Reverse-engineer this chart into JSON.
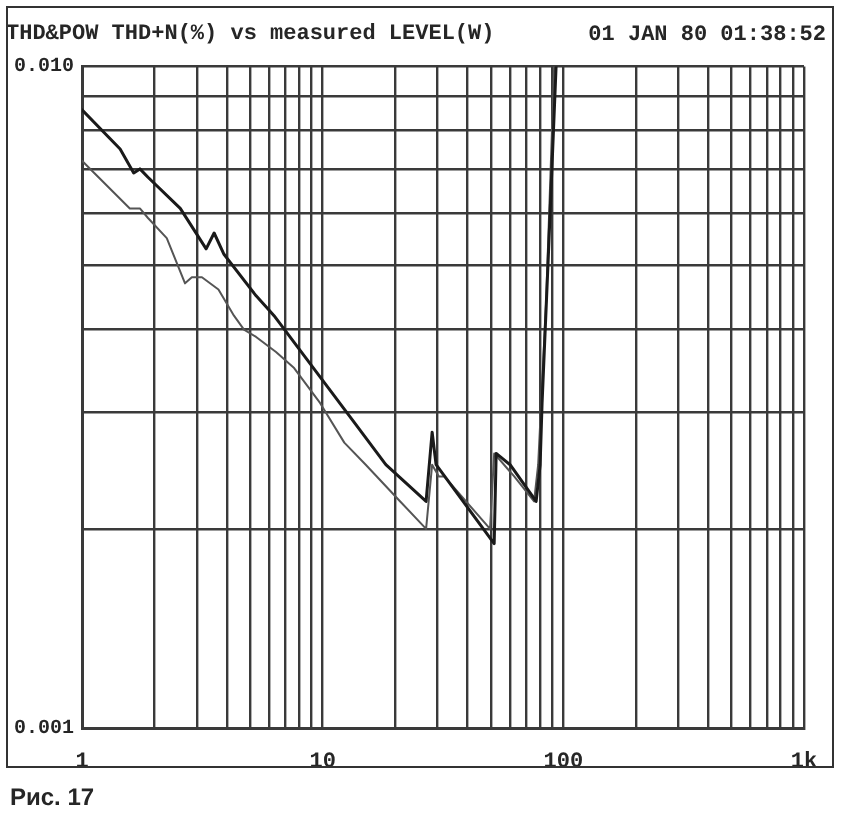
{
  "chart_data": {
    "type": "line",
    "title": "THD&POW THD+N(%) vs measured LEVEL(W)",
    "annotations": [
      "01 JAN 80 01:38:52",
      "Рис. 17"
    ],
    "log": "xy",
    "grid": true,
    "xlim": [
      1,
      1000
    ],
    "ylim": [
      0.001,
      0.01
    ],
    "xticks": [
      1,
      {
        "value": 2,
        "label": null
      },
      {
        "value": 3,
        "label": null
      },
      {
        "value": 4,
        "label": null
      },
      {
        "value": 5,
        "label": null
      },
      {
        "value": 6,
        "label": null
      },
      {
        "value": 7,
        "label": null
      },
      {
        "value": 8,
        "label": null
      },
      {
        "value": 9,
        "label": null
      },
      10,
      {
        "value": 20,
        "label": null
      },
      {
        "value": 30,
        "label": null
      },
      {
        "value": 40,
        "label": null
      },
      {
        "value": 50,
        "label": null
      },
      {
        "value": 60,
        "label": null
      },
      {
        "value": 70,
        "label": null
      },
      {
        "value": 80,
        "label": null
      },
      {
        "value": 90,
        "label": null
      },
      100,
      {
        "value": 200,
        "label": null
      },
      {
        "value": 300,
        "label": null
      },
      {
        "value": 400,
        "label": null
      },
      {
        "value": 500,
        "label": null
      },
      {
        "value": 600,
        "label": null
      },
      {
        "value": 700,
        "label": null
      },
      {
        "value": 800,
        "label": null
      },
      {
        "value": 900,
        "label": null
      },
      {
        "value": 1000,
        "label": "1k"
      }
    ],
    "yticks": [
      0.001,
      {
        "value": 0.002,
        "label": null
      },
      {
        "value": 0.003,
        "label": null
      },
      {
        "value": 0.004,
        "label": null
      },
      {
        "value": 0.005,
        "label": null
      },
      {
        "value": 0.006,
        "label": null
      },
      {
        "value": 0.007,
        "label": null
      },
      {
        "value": 0.008,
        "label": null
      },
      {
        "value": 0.009,
        "label": null
      },
      {
        "value": 0.01,
        "label": "0.010"
      }
    ],
    "series": [
      {
        "color": "#1a1a1a",
        "x": [
          1.0,
          1.44,
          1.64,
          1.74,
          1.88,
          2.56,
          3.28,
          3.54,
          3.89,
          5.29,
          5.93,
          6.28,
          13.5,
          18.3,
          26.9,
          28.5,
          29.6,
          51.6,
          52.6,
          60.1,
          77.1,
          80.1,
          81.6,
          86.5,
          93.3
        ],
        "values": [
          0.0086,
          0.0075,
          0.0069,
          0.007,
          0.0068,
          0.0061,
          0.0053,
          0.0056,
          0.0052,
          0.0045,
          0.0043,
          0.0042,
          0.0029,
          0.0025,
          0.0022,
          0.0028,
          0.0025,
          0.0019,
          0.0026,
          0.0025,
          0.0022,
          0.0025,
          0.0031,
          0.0051,
          0.01
        ]
      },
      {
        "color": "#555555",
        "x": [
          1.0,
          1.58,
          1.74,
          1.88,
          2.25,
          2.68,
          2.86,
          3.15,
          3.69,
          4.28,
          4.71,
          5.29,
          6.4,
          7.61,
          9.75,
          12.3,
          15.1,
          21.0,
          26.9,
          28.5,
          30.4,
          32.0,
          49.6,
          51.6,
          62.5,
          75.6,
          78.6,
          84.8,
          91.6
        ],
        "values": [
          0.0072,
          0.0061,
          0.0061,
          0.0059,
          0.0055,
          0.0047,
          0.0048,
          0.0048,
          0.0046,
          0.0042,
          0.004,
          0.0039,
          0.0037,
          0.0035,
          0.0031,
          0.0027,
          0.0025,
          0.0022,
          0.002,
          0.0025,
          0.0024,
          0.0024,
          0.002,
          0.0026,
          0.0024,
          0.0022,
          0.0025,
          0.0044,
          0.01
        ]
      }
    ]
  }
}
